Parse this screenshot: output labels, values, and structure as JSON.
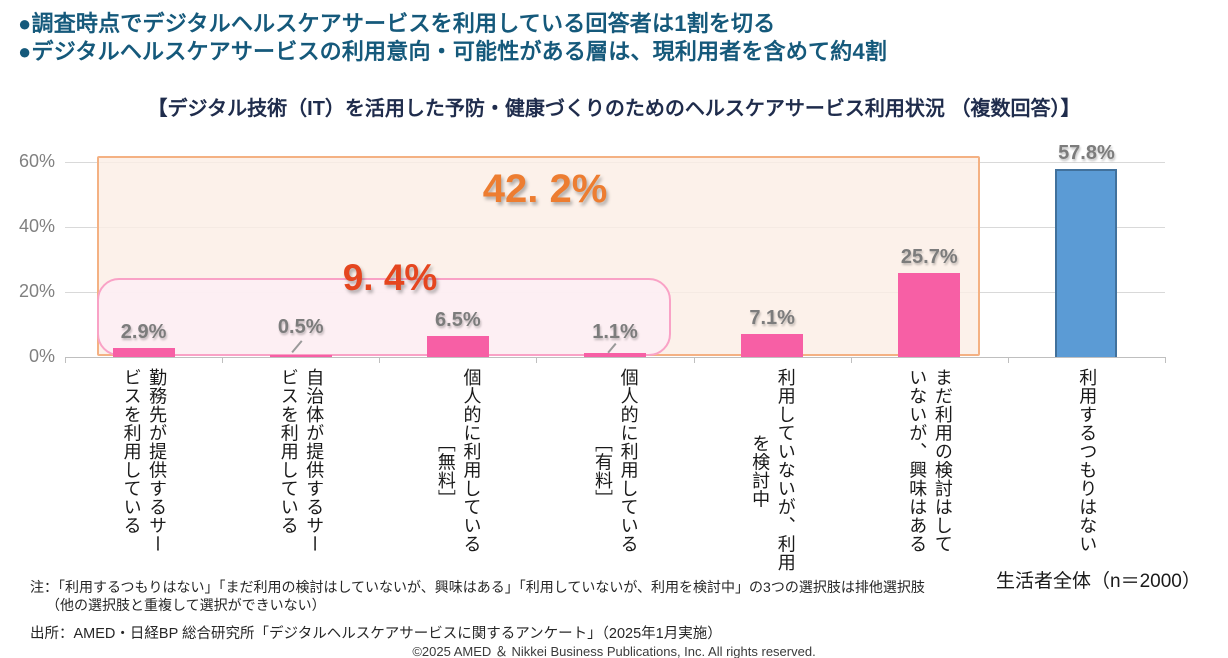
{
  "page": {
    "bullet1": "●調査時点でデジタルヘルスケアサービスを利用している回答者は1割を切る",
    "bullet2": "●デジタルヘルスケアサービスの利用意向・可能性がある層は、現利用者を含めて約4割",
    "title": "【デジタル技術（IT）を活用した予防・健康づくりのためのヘルスケアサービス利用状況 （複数回答）】",
    "sample_label": "生活者全体（n＝2000）",
    "note_line1": "注：「利用するつもりはない」「まだ利用の検討はしていないが、興味はある」「利用していないが、利用を検討中」の3つの選択肢は排他選択肢",
    "note_line2": "（他の選択肢と重複して選択ができいない）",
    "source": "出所：AMED・日経BP 総合研究所「デジタルヘルスケアサービスに関するアンケート」（2025年1月実施）",
    "copyright": "©2025  AMED  ＆  Nikkei Business Publications, Inc. All rights reserved."
  },
  "chart_data": {
    "type": "bar",
    "title": "【デジタル技術（IT）を活用した予防・健康づくりのためのヘルスケアサービス利用状況 （複数回答）】",
    "xlabel": "",
    "ylabel": "",
    "ylim": [
      0,
      65
    ],
    "yticks": [
      0,
      20,
      40,
      60
    ],
    "ytick_labels": [
      "0%",
      "20%",
      "40%",
      "60%"
    ],
    "grid": true,
    "sample_size": "n＝2000",
    "categories": [
      {
        "label": "勤務先が提供するサービスを利用している",
        "cols": [
          "勤務先が提供するサー",
          "ビスを利用している"
        ],
        "center_second_col": false
      },
      {
        "label": "自治体が提供するサービスを利用している",
        "cols": [
          "自治体が提供するサー",
          "ビスを利用している"
        ],
        "center_second_col": false
      },
      {
        "label": "個人的に利用している［無料］",
        "cols": [
          "個人的に利用している",
          "［無料］"
        ],
        "center_second_col": true
      },
      {
        "label": "個人的に利用している［有料］",
        "cols": [
          "個人的に利用している",
          "［有料］"
        ],
        "center_second_col": true
      },
      {
        "label": "利用していないが、利用を検討中",
        "cols": [
          "利用していないが、利用",
          "を検討中"
        ],
        "center_second_col": true
      },
      {
        "label": "まだ利用の検討はしていないが、興味はある",
        "cols": [
          "まだ利用の検討はして",
          "いないが、興味はある"
        ],
        "center_second_col": false
      },
      {
        "label": "利用するつもりはない",
        "cols": [
          "利用するつもりはない"
        ],
        "center_second_col": false
      }
    ],
    "values": [
      2.9,
      0.5,
      6.5,
      1.1,
      7.1,
      25.7,
      57.8
    ],
    "value_labels": [
      "2.9%",
      "0.5%",
      "6.5%",
      "1.1%",
      "7.1%",
      "25.7%",
      "57.8%"
    ],
    "bar_colors": [
      "pink",
      "pink",
      "pink",
      "pink",
      "pink",
      "pink",
      "blue"
    ],
    "annotations": [
      {
        "id": "pink-group",
        "label": "9. 4%",
        "value": 9.4,
        "covers_categories": [
          0,
          1,
          2,
          3
        ]
      },
      {
        "id": "orange-group",
        "label": "42. 2%",
        "value": 42.2,
        "covers_categories": [
          0,
          1,
          2,
          3,
          4,
          5
        ]
      }
    ],
    "legend_position": "none"
  },
  "colors": {
    "headline": "#15597B",
    "title": "#1F2C4C",
    "bar_pink": "#F75FA5",
    "bar_blue": "#5B9BD5",
    "bar_blue_border": "#41719C",
    "box_pink_border": "#F9A2C6",
    "box_pink_fill": "rgba(253,238,244,0.88)",
    "box_orange_border": "#F4B183",
    "box_orange_fill": "rgba(251,238,229,0.82)",
    "annotation_red": "#E5461F",
    "annotation_orange": "#ED7D31",
    "value_label": "#7C7C7C",
    "axis_label": "#808080",
    "gridline": "#D9D9D9"
  }
}
